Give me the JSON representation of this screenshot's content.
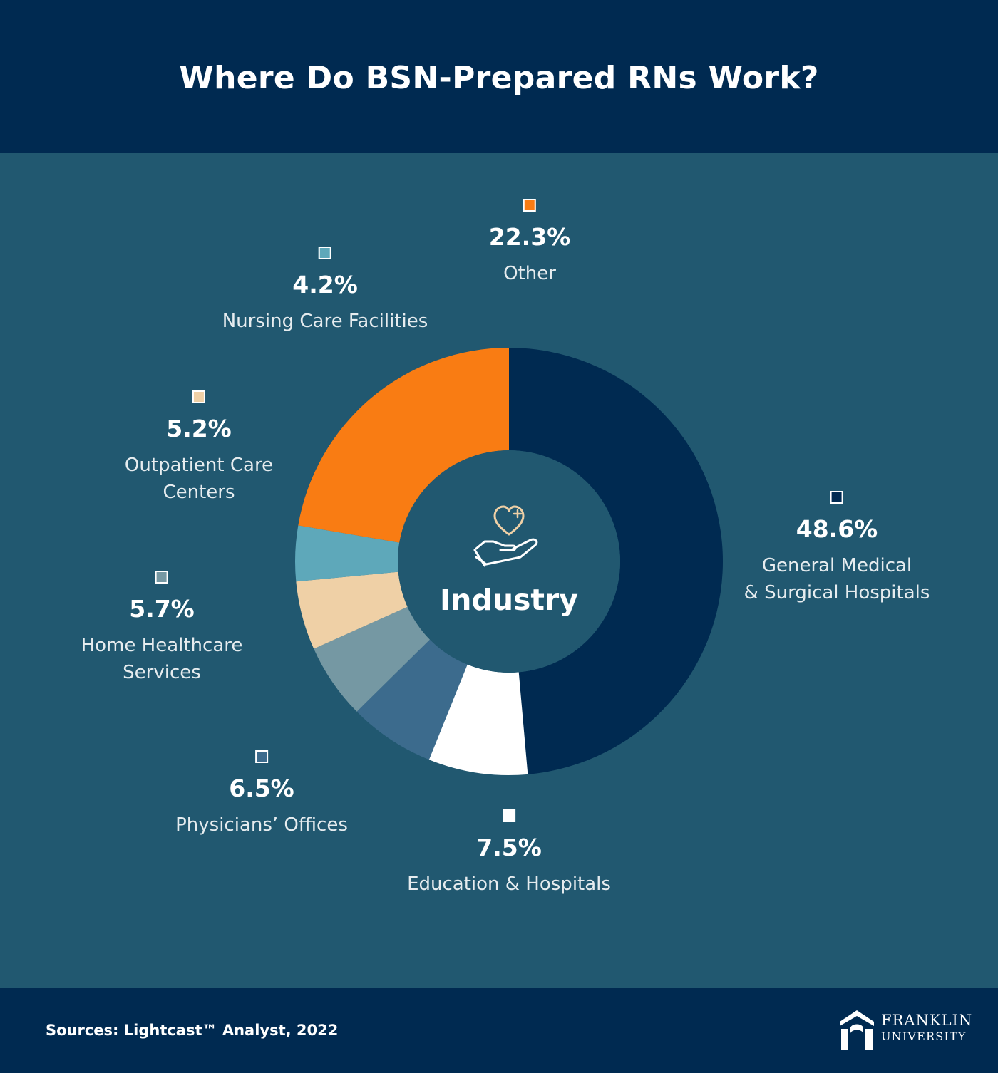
{
  "title": "Where Do BSN-Prepared RNs Work?",
  "footer": {
    "source": "Sources: Lightcast™ Analyst, 2022",
    "logo_line1": "FRANKLIN",
    "logo_line2": "UNIVERSITY"
  },
  "chart_data": {
    "type": "pie",
    "title": "Where Do BSN-Prepared RNs Work?",
    "center_label": "Industry",
    "center_icon": "hand-heart-icon",
    "slices": [
      {
        "label": "General Medical & Surgical Hospitals",
        "label_lines": [
          "General Medical",
          "& Surgical Hospitals"
        ],
        "value": 48.6,
        "value_label": "48.6%",
        "color": "#002a51"
      },
      {
        "label": "Education & Hospitals",
        "label_lines": [
          "Education & Hospitals"
        ],
        "value": 7.5,
        "value_label": "7.5%",
        "color": "#ffffff"
      },
      {
        "label": "Physicians’ Offices",
        "label_lines": [
          "Physicians’ Offices"
        ],
        "value": 6.5,
        "value_label": "6.5%",
        "color": "#3c6b8d"
      },
      {
        "label": "Home Healthcare Services",
        "label_lines": [
          "Home Healthcare",
          "Services"
        ],
        "value": 5.7,
        "value_label": "5.7%",
        "color": "#7598a3"
      },
      {
        "label": "Outpatient Care Centers",
        "label_lines": [
          "Outpatient Care",
          "Centers"
        ],
        "value": 5.2,
        "value_label": "5.2%",
        "color": "#efd0a6"
      },
      {
        "label": "Nursing Care Facilities",
        "label_lines": [
          "Nursing Care Facilities"
        ],
        "value": 4.2,
        "value_label": "4.2%",
        "color": "#5ea8ba"
      },
      {
        "label": "Other",
        "label_lines": [
          "Other"
        ],
        "value": 22.3,
        "value_label": "22.3%",
        "color": "#f97c13"
      }
    ]
  }
}
